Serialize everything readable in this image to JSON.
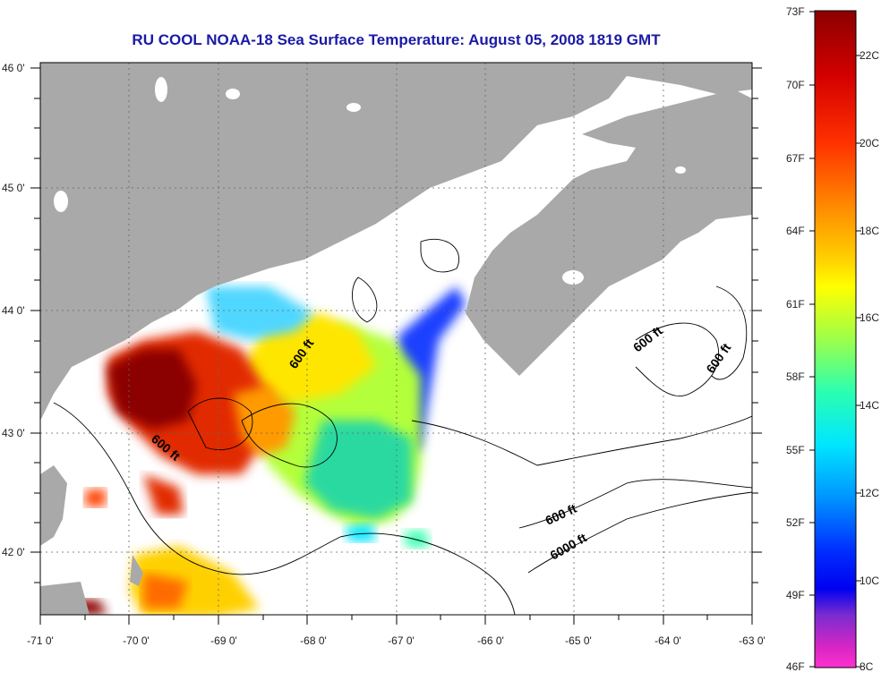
{
  "title": "RU COOL  NOAA-18  Sea Surface Temperature:  August 05, 2008 1819 GMT",
  "axes": {
    "lat_labels": [
      "46 0'",
      "45 0'",
      "44 0'",
      "43 0'",
      "42 0'"
    ],
    "lon_labels": [
      "-71 0'",
      "-70 0'",
      "-69 0'",
      "-68 0'",
      "-67 0'",
      "-66 0'",
      "-65 0'",
      "-64 0'",
      "-63 0'"
    ]
  },
  "contours": [
    "600 ft",
    "600 ft",
    "600 ft",
    "600 ft",
    "600 ft",
    "6000 ft"
  ],
  "colorbar": {
    "fahrenheit": [
      "73F",
      "70F",
      "67F",
      "64F",
      "61F",
      "58F",
      "55F",
      "52F",
      "49F",
      "46F"
    ],
    "celsius": [
      "22C",
      "20C",
      "18C",
      "16C",
      "14C",
      "12C",
      "10C",
      "8C"
    ],
    "colors": [
      "#8b0000",
      "#d40000",
      "#ff3000",
      "#ff8c00",
      "#ffd200",
      "#ffff00",
      "#9dff4a",
      "#2bffb0",
      "#00e6ff",
      "#0096ff",
      "#0030ff",
      "#0000f0",
      "#7a2cd0",
      "#d826c4",
      "#ff30d0"
    ]
  },
  "colors": {
    "land": "#a9a9a9",
    "title": "#1a1aa6",
    "ocean": "#ffffff"
  }
}
